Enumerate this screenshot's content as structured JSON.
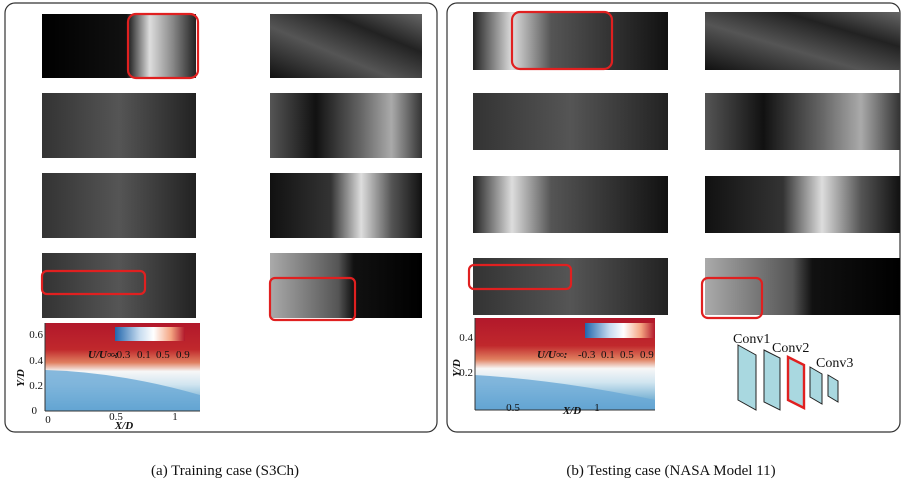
{
  "panel_a": {
    "caption": "(a) Training case (S3Ch)",
    "contour": {
      "y_label": "Y/D",
      "x_label": "X/D",
      "yticks": [
        "0",
        "0.2",
        "0.4",
        "0.6"
      ],
      "xticks": [
        "0",
        "0.5",
        "1"
      ],
      "colorbar_label": "U/U∞:",
      "colorbar_ticks": [
        "-0.3",
        "0.1",
        "0.5",
        "0.9"
      ]
    }
  },
  "panel_b": {
    "caption": "(b) Testing case (NASA Model 11)",
    "contour": {
      "y_label": "Y/D",
      "x_label": "X/D",
      "yticks": [
        "0.2",
        "0.4"
      ],
      "xticks": [
        "0.5",
        "1"
      ],
      "colorbar_label": "U/U∞:",
      "colorbar_ticks": [
        "-0.3",
        "0.1",
        "0.5",
        "0.9"
      ]
    },
    "layers": [
      "Conv1",
      "Conv2",
      "Conv3"
    ]
  }
}
